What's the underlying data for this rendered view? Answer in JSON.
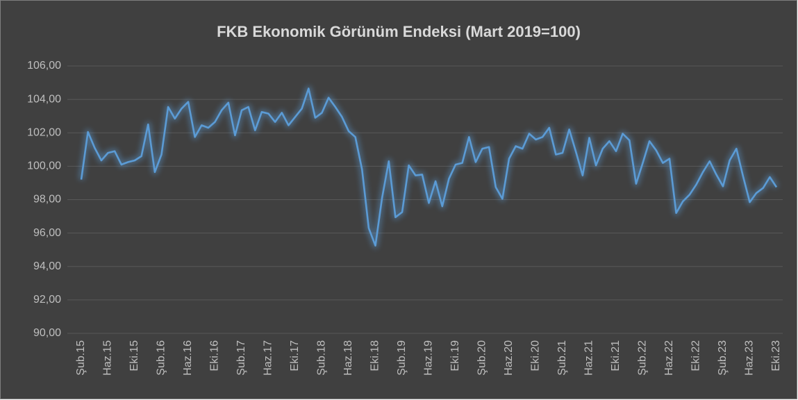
{
  "chart_data": {
    "type": "line",
    "title": "FKB Ekonomik Görünüm Endeksi (Mart 2019=100)",
    "categories": [
      "Şub.15",
      null,
      null,
      null,
      "Haz.15",
      null,
      null,
      null,
      "Eki.15",
      null,
      null,
      null,
      "Şub.16",
      null,
      null,
      null,
      "Haz.16",
      null,
      null,
      null,
      "Eki.16",
      null,
      null,
      null,
      "Şub.17",
      null,
      null,
      null,
      "Haz.17",
      null,
      null,
      null,
      "Eki.17",
      null,
      null,
      null,
      "Şub.18",
      null,
      null,
      null,
      "Haz.18",
      null,
      null,
      null,
      "Eki.18",
      null,
      null,
      null,
      "Şub.19",
      null,
      null,
      null,
      "Haz.19",
      null,
      null,
      null,
      "Eki.19",
      null,
      null,
      null,
      "Şub.20",
      null,
      null,
      null,
      "Haz.20",
      null,
      null,
      null,
      "Eki.20",
      null,
      null,
      null,
      "Şub.21",
      null,
      null,
      null,
      "Haz.21",
      null,
      null,
      null,
      "Eki.21",
      null,
      null,
      null,
      "Şub.22",
      null,
      null,
      null,
      "Haz.22",
      null,
      null,
      null,
      "Eki.22",
      null,
      null,
      null,
      "Şub.23",
      null,
      null,
      null,
      "Haz.23",
      null,
      null,
      null,
      "Eki.23"
    ],
    "series": [
      {
        "name": "FKB Ekonomik Görünüm Endeksi",
        "color": "#5b9bd5",
        "values": [
          99.2,
          102.05,
          101.1,
          100.35,
          100.8,
          100.9,
          100.1,
          100.25,
          100.35,
          100.6,
          102.5,
          99.65,
          100.7,
          103.55,
          102.85,
          103.45,
          103.85,
          101.75,
          102.45,
          102.3,
          102.65,
          103.35,
          103.8,
          101.85,
          103.35,
          103.55,
          102.15,
          103.25,
          103.15,
          102.65,
          103.2,
          102.45,
          102.95,
          103.45,
          104.65,
          102.9,
          103.2,
          104.1,
          103.55,
          102.95,
          102.1,
          101.75,
          99.8,
          96.3,
          95.25,
          98.1,
          100.3,
          96.95,
          97.25,
          100.05,
          99.45,
          99.5,
          97.8,
          99.1,
          97.6,
          99.25,
          100.1,
          100.2,
          101.75,
          100.25,
          101.05,
          101.15,
          98.75,
          98.05,
          100.45,
          101.2,
          101.05,
          101.95,
          101.6,
          101.75,
          102.3,
          100.7,
          100.8,
          102.2,
          100.85,
          99.45,
          101.7,
          100.05,
          101.05,
          101.5,
          100.9,
          101.95,
          101.55,
          98.95,
          100.2,
          101.5,
          100.95,
          100.2,
          100.45,
          97.2,
          97.9,
          98.3,
          98.9,
          99.65,
          100.3,
          99.5,
          98.8,
          100.35,
          101.05,
          99.4,
          97.85,
          98.4,
          98.7,
          99.35,
          98.75
        ]
      }
    ],
    "ylim": [
      90,
      106
    ],
    "yticks": [
      {
        "value": 90,
        "label": "90,00"
      },
      {
        "value": 92,
        "label": "92,00"
      },
      {
        "value": 94,
        "label": "94,00"
      },
      {
        "value": 96,
        "label": "96,00"
      },
      {
        "value": 98,
        "label": "98,00"
      },
      {
        "value": 100,
        "label": "100,00"
      },
      {
        "value": 102,
        "label": "102,00"
      },
      {
        "value": 104,
        "label": "104,00"
      },
      {
        "value": 106,
        "label": "106,00"
      }
    ],
    "grid": true
  }
}
